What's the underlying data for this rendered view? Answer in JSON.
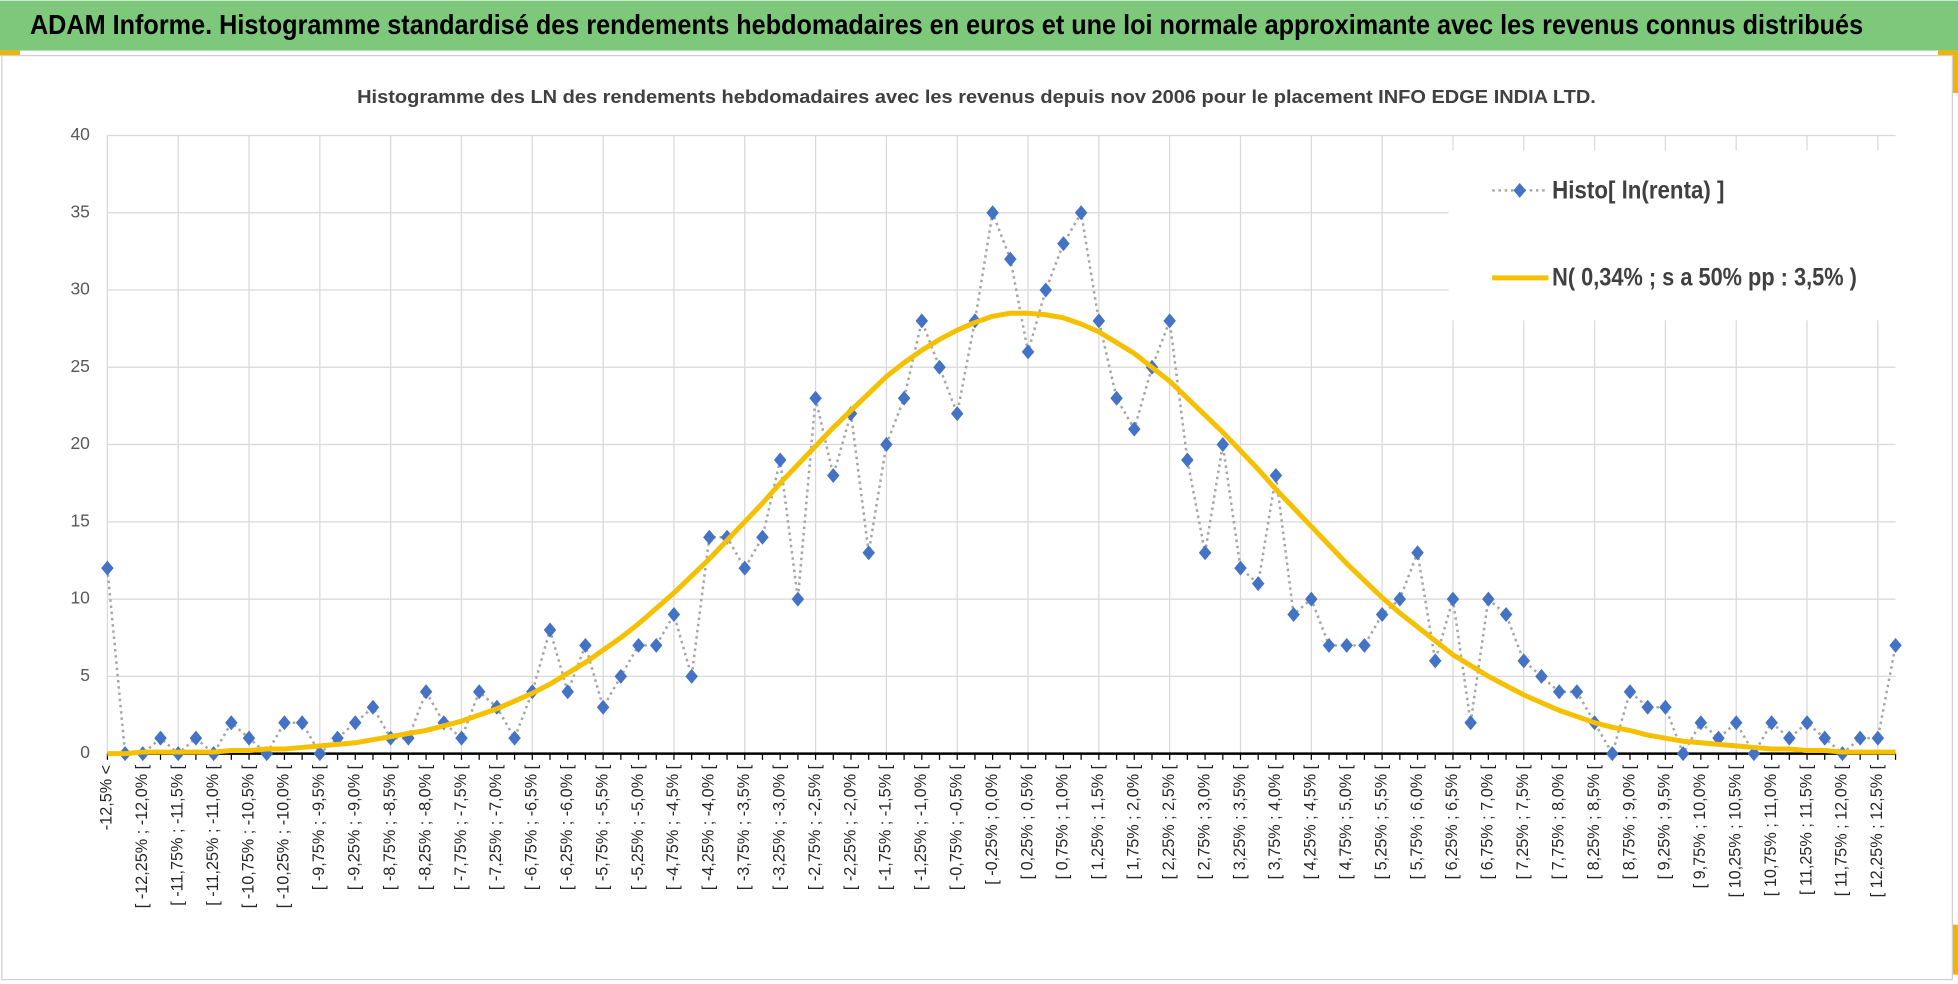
{
  "chart_data": {
    "type": "line",
    "title": "ADAM Informe. Histogramme standardisé des rendements hebdomadaires en euros et une loi normale approximante avec les revenus connus distribués",
    "subtitle": "Histogramme des LN des rendements hebdomadaires avec les revenus depuis nov 2006 pour le placement INFO EDGE INDIA LTD.",
    "categories": [
      "-12,5% <",
      null,
      "[ -12,25% ; -12,0% [",
      null,
      "[ -11,75% ; -11,5% [",
      null,
      "[ -11,25% ; -11,0% [",
      null,
      "[ -10,75% ; -10,5% [",
      null,
      "[ -10,25% ; -10,0% [",
      null,
      "[ -9,75% ; -9,5% [",
      null,
      "[ -9,25% ; -9,0% [",
      null,
      "[ -8,75% ; -8,5% [",
      null,
      "[ -8,25% ; -8,0% [",
      null,
      "[ -7,75% ; -7,5% [",
      null,
      "[ -7,25% ; -7,0% [",
      null,
      "[ -6,75% ; -6,5% [",
      null,
      "[ -6,25% ; -6,0% [",
      null,
      "[ -5,75% ; -5,5% [",
      null,
      "[ -5,25% ; -5,0% [",
      null,
      "[ -4,75% ; -4,5% [",
      null,
      "[ -4,25% ; -4,0% [",
      null,
      "[ -3,75% ; -3,5% [",
      null,
      "[ -3,25% ; -3,0% [",
      null,
      "[ -2,75% ; -2,5% [",
      null,
      "[ -2,25% ; -2,0% [",
      null,
      "[ -1,75% ; -1,5% [",
      null,
      "[ -1,25% ; -1,0% [",
      null,
      "[ -0,75% ; -0,5% [",
      null,
      "[ -0,25% ; 0,0% [",
      null,
      "[ 0,25% ; 0,5% [",
      null,
      "[ 0,75% ; 1,0% [",
      null,
      "[ 1,25% ; 1,5% [",
      null,
      "[ 1,75% ; 2,0% [",
      null,
      "[ 2,25% ; 2,5% [",
      null,
      "[ 2,75% ; 3,0% [",
      null,
      "[ 3,25% ; 3,5% [",
      null,
      "[ 3,75% ; 4,0% [",
      null,
      "[ 4,25% ; 4,5% [",
      null,
      "[ 4,75% ; 5,0% [",
      null,
      "[ 5,25% ; 5,5% [",
      null,
      "[ 5,75% ; 6,0% [",
      null,
      "[ 6,25% ; 6,5% [",
      null,
      "[ 6,75% ; 7,0% [",
      null,
      "[ 7,25% ; 7,5% [",
      null,
      "[ 7,75% ; 8,0% [",
      null,
      "[ 8,25% ; 8,5% [",
      null,
      "[ 8,75% ; 9,0% [",
      null,
      "[ 9,25% ; 9,5% [",
      null,
      "[ 9,75% ; 10,0% [",
      null,
      "[ 10,25% ; 10,5% [",
      null,
      "[ 10,75% ; 11,0% [",
      null,
      "[ 11,25% ; 11,5% [",
      null,
      "[ 11,75% ; 12,0% [",
      null,
      "[ 12,25% ; 12,5% [",
      null
    ],
    "series": [
      {
        "name": "Histo[ ln(renta) ]",
        "color": "#4472c4",
        "line_color": "#a6a6a6",
        "values": [
          12,
          0,
          0,
          1,
          0,
          1,
          0,
          2,
          1,
          0,
          2,
          2,
          0,
          1,
          2,
          3,
          1,
          1,
          4,
          2,
          1,
          4,
          3,
          1,
          4,
          8,
          4,
          7,
          3,
          5,
          7,
          7,
          9,
          5,
          14,
          14,
          12,
          14,
          19,
          10,
          23,
          18,
          22,
          13,
          20,
          23,
          28,
          25,
          22,
          28,
          35,
          32,
          26,
          30,
          33,
          35,
          28,
          23,
          21,
          25,
          28,
          19,
          13,
          20,
          12,
          11,
          18,
          9,
          10,
          7,
          7,
          7,
          9,
          10,
          13,
          6,
          10,
          2,
          10,
          9,
          6,
          5,
          4,
          4,
          2,
          0,
          4,
          3,
          3,
          0,
          2,
          1,
          2,
          0,
          2,
          1,
          2,
          1,
          0,
          1,
          1,
          7
        ]
      },
      {
        "name": "N( 0,34% ; s a 50% pp : 3,5% )",
        "color": "#f5c000",
        "values": [
          0,
          0,
          0.1,
          0.1,
          0.1,
          0.1,
          0.1,
          0.2,
          0.2,
          0.3,
          0.3,
          0.4,
          0.5,
          0.6,
          0.7,
          0.9,
          1.1,
          1.3,
          1.5,
          1.8,
          2.1,
          2.5,
          2.9,
          3.4,
          3.9,
          4.5,
          5.2,
          5.9,
          6.7,
          7.5,
          8.4,
          9.4,
          10.4,
          11.5,
          12.6,
          13.8,
          15,
          16.2,
          17.5,
          18.7,
          19.9,
          21.1,
          22.2,
          23.3,
          24.4,
          25.3,
          26.1,
          26.8,
          27.4,
          27.9,
          28.3,
          28.5,
          28.5,
          28.4,
          28.2,
          27.8,
          27.3,
          26.6,
          25.9,
          25,
          24.1,
          23,
          21.9,
          20.8,
          19.6,
          18.4,
          17.1,
          15.9,
          14.7,
          13.5,
          12.3,
          11.2,
          10.1,
          9.1,
          8.2,
          7.3,
          6.4,
          5.7,
          5,
          4.4,
          3.8,
          3.3,
          2.8,
          2.4,
          2,
          1.7,
          1.5,
          1.2,
          1,
          0.8,
          0.7,
          0.6,
          0.5,
          0.4,
          0.3,
          0.3,
          0.2,
          0.2,
          0.1,
          0.1,
          0.1,
          0.1
        ]
      }
    ],
    "ylim": [
      0,
      40
    ],
    "yticks": [
      0,
      5,
      10,
      15,
      20,
      25,
      30,
      35,
      40
    ],
    "grid": true,
    "legend": "upper right"
  }
}
